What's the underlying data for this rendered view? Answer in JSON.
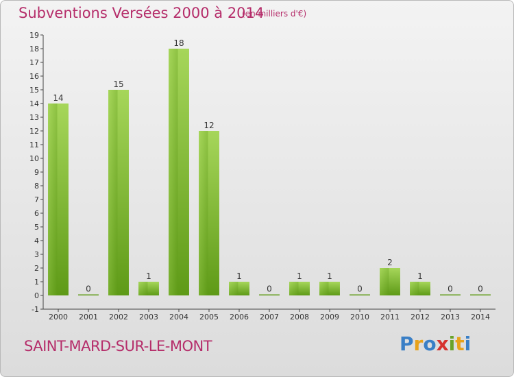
{
  "title": "Subventions Versées 2000 à 2014",
  "unit_note": "(en milliers d'€)",
  "commune": "SAINT-MARD-SUR-LE-MONT",
  "logo": {
    "text": "Proxiti",
    "letters": [
      {
        "ch": "P",
        "color": "#3a7fc6"
      },
      {
        "ch": "r",
        "color": "#e8a21a"
      },
      {
        "ch": "o",
        "color": "#3a7fc6"
      },
      {
        "ch": "x",
        "color": "#d6322f"
      },
      {
        "ch": "i",
        "color": "#6aa32a"
      },
      {
        "ch": "t",
        "color": "#e8a21a"
      },
      {
        "ch": "i",
        "color": "#3a7fc6"
      }
    ]
  },
  "colors": {
    "bar_light": "#a6d65a",
    "bar_dark": "#5e9a17",
    "title": "#b52d6a"
  },
  "chart_data": {
    "type": "bar",
    "categories": [
      "2000",
      "2001",
      "2002",
      "2003",
      "2004",
      "2005",
      "2006",
      "2007",
      "2008",
      "2009",
      "2010",
      "2011",
      "2012",
      "2013",
      "2014"
    ],
    "values": [
      14,
      0,
      15,
      1,
      18,
      12,
      1,
      0,
      1,
      1,
      0,
      2,
      1,
      0,
      0
    ],
    "data_labels": [
      "14",
      "0",
      "15",
      "1",
      "18",
      "12",
      "1",
      "0",
      "1",
      "1",
      "0",
      "2",
      "1",
      "0",
      "0"
    ],
    "yticks": [
      "-1",
      "0",
      "1",
      "2",
      "3",
      "4",
      "5",
      "6",
      "7",
      "8",
      "9",
      "10",
      "11",
      "12",
      "13",
      "14",
      "15",
      "16",
      "17",
      "18",
      "19"
    ],
    "ylim": [
      -1,
      19
    ],
    "title": "Subventions Versées 2000 à 2014",
    "xlabel": "",
    "ylabel": "",
    "grid": false
  }
}
